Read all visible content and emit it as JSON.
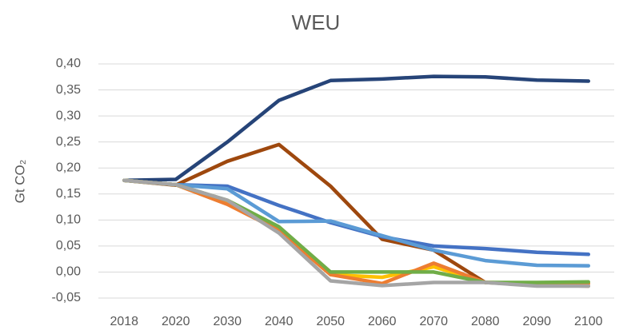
{
  "chart_data": {
    "type": "line",
    "title": "WEU",
    "y_label": "Gt CO₂",
    "categories": [
      "2018",
      "2020",
      "2030",
      "2040",
      "2050",
      "2060",
      "2070",
      "2080",
      "2090",
      "2100"
    ],
    "series": [
      {
        "color": "#264478",
        "values": [
          0.176,
          0.178,
          0.25,
          0.33,
          0.368,
          0.371,
          0.376,
          0.375,
          0.369,
          0.367
        ]
      },
      {
        "color": "#9e480e",
        "values": [
          0.176,
          0.167,
          0.213,
          0.245,
          0.165,
          0.063,
          0.042,
          -0.02,
          -0.025,
          -0.027
        ]
      },
      {
        "color": "#4472c4",
        "values": [
          0.176,
          0.168,
          0.165,
          0.128,
          0.095,
          0.068,
          0.05,
          0.045,
          0.038,
          0.034
        ]
      },
      {
        "color": "#5b9bd5",
        "values": [
          0.176,
          0.168,
          0.16,
          0.097,
          0.098,
          0.07,
          0.042,
          0.022,
          0.013,
          0.012
        ]
      },
      {
        "color": "#ffc000",
        "values": [
          0.176,
          0.168,
          0.132,
          0.08,
          -0.005,
          -0.01,
          0.01,
          -0.02,
          -0.022,
          -0.022
        ]
      },
      {
        "color": "#ed7d31",
        "values": [
          0.176,
          0.168,
          0.13,
          0.08,
          -0.005,
          -0.022,
          0.017,
          -0.02,
          -0.022,
          -0.022
        ]
      },
      {
        "color": "#70ad47",
        "values": [
          0.176,
          0.168,
          0.138,
          0.087,
          0.0,
          0.0,
          0.0,
          -0.02,
          -0.02,
          -0.019
        ]
      },
      {
        "color": "#a5a5a5",
        "values": [
          0.176,
          0.168,
          0.138,
          0.075,
          -0.017,
          -0.026,
          -0.02,
          -0.02,
          -0.027,
          -0.027
        ]
      }
    ],
    "ylim": [
      -0.05,
      0.4
    ],
    "yticks": [
      {
        "value": -0.05,
        "label": "-0,05"
      },
      {
        "value": 0,
        "label": "0,00"
      },
      {
        "value": 0.05,
        "label": "0,05"
      },
      {
        "value": 0.1,
        "label": "0,10"
      },
      {
        "value": 0.15,
        "label": "0,15"
      },
      {
        "value": 0.2,
        "label": "0,20"
      },
      {
        "value": 0.25,
        "label": "0,25"
      },
      {
        "value": 0.3,
        "label": "0,30"
      },
      {
        "value": 0.35,
        "label": "0,35"
      },
      {
        "value": 0.4,
        "label": "0,40"
      }
    ],
    "grid": true
  }
}
